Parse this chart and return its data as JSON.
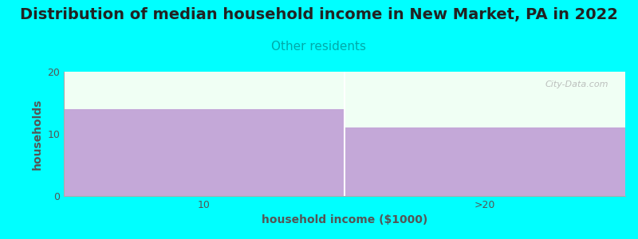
{
  "title": "Distribution of median household income in New Market, PA in 2022",
  "subtitle": "Other residents",
  "subtitle_color": "#00aaaa",
  "xlabel": "household income ($1000)",
  "ylabel": "households",
  "background_color": "#00ffff",
  "plot_bg_color": "#f0fff4",
  "bar_color": "#c4a8d8",
  "categories": [
    "10",
    ">20"
  ],
  "values": [
    14,
    11
  ],
  "ylim": [
    0,
    20
  ],
  "yticks": [
    0,
    10,
    20
  ],
  "title_fontsize": 14,
  "subtitle_fontsize": 11,
  "label_fontsize": 10,
  "tick_fontsize": 9,
  "watermark": "City-Data.com",
  "axis_color": "#555555",
  "tick_color": "#555555"
}
